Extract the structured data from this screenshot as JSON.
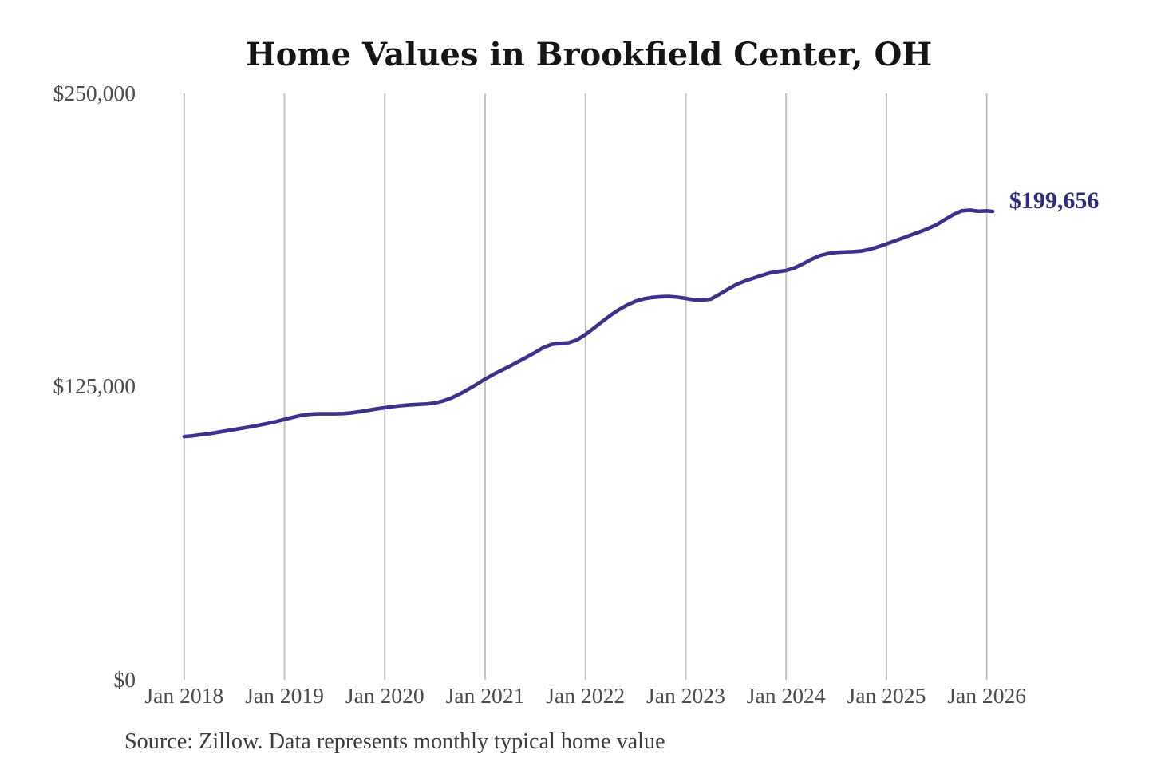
{
  "page": {
    "background_color": "#ffffff"
  },
  "chart_data": {
    "type": "line",
    "title": "Home Values in Brookfield Center, OH",
    "source_note": "Source: Zillow. Data represents monthly typical home value",
    "series_name": "Monthly typical home value",
    "unit": "USD",
    "x_tick_labels": [
      "Jan 2018",
      "Jan 2019",
      "Jan 2020",
      "Jan 2021",
      "Jan 2022",
      "Jan 2023",
      "Jan 2024",
      "Jan 2025",
      "Jan 2026"
    ],
    "y_tick_labels": [
      "$0",
      "$125,000",
      "$250,000"
    ],
    "y_tick_values": [
      0,
      125000,
      250000
    ],
    "ylim": [
      0,
      250000
    ],
    "grid": "vertical-only",
    "legend_position": "none",
    "line_color": "#3b3389",
    "annotation_color": "#302d80",
    "grid_color": "#bdbdbd",
    "end_label": "$199,656",
    "end_value": 199656,
    "x": [
      "2018-01",
      "2018-02",
      "2018-03",
      "2018-04",
      "2018-05",
      "2018-06",
      "2018-07",
      "2018-08",
      "2018-09",
      "2018-10",
      "2018-11",
      "2018-12",
      "2019-01",
      "2019-02",
      "2019-03",
      "2019-04",
      "2019-05",
      "2019-06",
      "2019-07",
      "2019-08",
      "2019-09",
      "2019-10",
      "2019-11",
      "2019-12",
      "2020-01",
      "2020-02",
      "2020-03",
      "2020-04",
      "2020-05",
      "2020-06",
      "2020-07",
      "2020-08",
      "2020-09",
      "2020-10",
      "2020-11",
      "2020-12",
      "2021-01",
      "2021-02",
      "2021-03",
      "2021-04",
      "2021-05",
      "2021-06",
      "2021-07",
      "2021-08",
      "2021-09",
      "2021-10",
      "2021-11",
      "2021-12",
      "2022-01",
      "2022-02",
      "2022-03",
      "2022-04",
      "2022-05",
      "2022-06",
      "2022-07",
      "2022-08",
      "2022-09",
      "2022-10",
      "2022-11",
      "2022-12",
      "2023-01",
      "2023-02",
      "2023-03",
      "2023-04",
      "2023-05",
      "2023-06",
      "2023-07",
      "2023-08",
      "2023-09",
      "2023-10",
      "2023-11",
      "2023-12",
      "2024-01",
      "2024-02",
      "2024-03",
      "2024-04",
      "2024-05",
      "2024-06",
      "2024-07",
      "2024-08",
      "2024-09",
      "2024-10",
      "2024-11",
      "2024-12",
      "2025-01",
      "2025-02",
      "2025-03",
      "2025-04",
      "2025-05",
      "2025-06",
      "2025-07",
      "2025-08",
      "2025-09",
      "2025-10",
      "2025-11",
      "2025-12",
      "2026-01",
      "2026-02"
    ],
    "values": [
      103700,
      104000,
      104500,
      104900,
      105500,
      106100,
      106700,
      107300,
      107900,
      108600,
      109300,
      110100,
      111000,
      111900,
      112700,
      113200,
      113400,
      113400,
      113400,
      113500,
      113800,
      114300,
      114900,
      115500,
      116000,
      116500,
      116900,
      117200,
      117400,
      117600,
      118000,
      118900,
      120200,
      121900,
      123900,
      126000,
      128200,
      130200,
      132000,
      133800,
      135700,
      137600,
      139600,
      141700,
      143000,
      143400,
      143700,
      144900,
      147200,
      149900,
      152700,
      155400,
      157800,
      159800,
      161400,
      162400,
      163000,
      163300,
      163400,
      163100,
      162600,
      162000,
      161900,
      162300,
      164300,
      166400,
      168400,
      169900,
      171100,
      172300,
      173400,
      174000,
      174500,
      175600,
      177300,
      179200,
      180800,
      181700,
      182200,
      182400,
      182500,
      182800,
      183500,
      184600,
      185800,
      187100,
      188400,
      189700,
      191000,
      192400,
      194000,
      196200,
      198300,
      199900,
      200200,
      199700,
      199900,
      199656
    ]
  }
}
